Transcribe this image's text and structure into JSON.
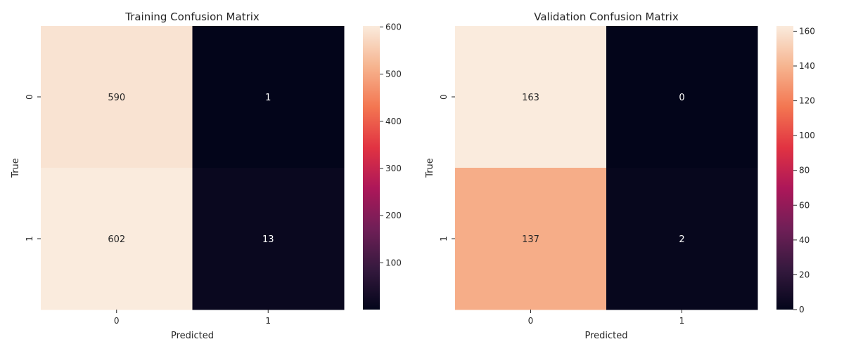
{
  "chart_data": [
    {
      "type": "heatmap",
      "title": "Training Confusion Matrix",
      "xlabel": "Predicted",
      "ylabel": "True",
      "x_categories": [
        "0",
        "1"
      ],
      "y_categories": [
        "0",
        "1"
      ],
      "values": [
        [
          590,
          1
        ],
        [
          602,
          13
        ]
      ],
      "colormap": "rocket",
      "colorbar": {
        "min": 1,
        "max": 602,
        "ticks": [
          100,
          200,
          300,
          400,
          500,
          600
        ]
      },
      "grid": false
    },
    {
      "type": "heatmap",
      "title": "Validation Confusion Matrix",
      "xlabel": "Predicted",
      "ylabel": "True",
      "x_categories": [
        "0",
        "1"
      ],
      "y_categories": [
        "0",
        "1"
      ],
      "values": [
        [
          163,
          0
        ],
        [
          137,
          2
        ]
      ],
      "colormap": "rocket",
      "colorbar": {
        "min": 0,
        "max": 163,
        "ticks": [
          0,
          20,
          40,
          60,
          80,
          100,
          120,
          140,
          160
        ]
      },
      "grid": false
    }
  ],
  "colors": {
    "rocket_stops": [
      "#03051a",
      "#35193e",
      "#701f57",
      "#ad1759",
      "#e13342",
      "#f37651",
      "#f6b48f",
      "#faebdd"
    ],
    "annotation_dark_bg_text": "#ffffff",
    "annotation_light_bg_text": "#262626"
  }
}
